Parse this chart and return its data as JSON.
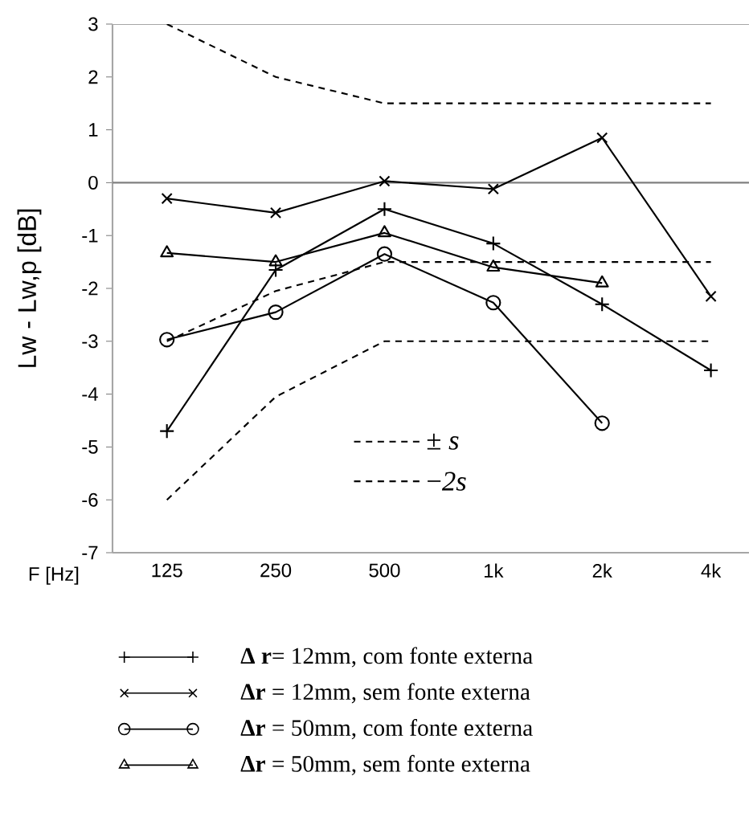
{
  "chart_data": {
    "type": "line",
    "ylabel": "Lw - Lw,p [dB]",
    "xlabel": "F [Hz]",
    "categories": [
      "125",
      "250",
      "500",
      "1k",
      "2k",
      "4k"
    ],
    "ylim": [
      -7,
      3
    ],
    "yticks": [
      -7,
      -6,
      -5,
      -4,
      -3,
      -2,
      -1,
      0,
      1,
      2,
      3
    ],
    "legend": "bottom",
    "ref_lines": [
      {
        "axis": "y",
        "value": 0,
        "color": "#808080"
      }
    ],
    "series": [
      {
        "name": "**Δ r**= 12mm, com fonte externa",
        "color": "#000000",
        "marker": "plus",
        "values": [
          -4.7,
          -1.65,
          -0.5,
          -1.15,
          -2.3,
          -3.55
        ]
      },
      {
        "name": "**Δr** = 12mm, sem fonte externa",
        "color": "#000000",
        "marker": "cross",
        "values": [
          -0.3,
          -0.57,
          0.03,
          -0.12,
          0.85,
          -2.15
        ]
      },
      {
        "name": "**Δr** = 50mm, com fonte externa",
        "color": "#000000",
        "marker": "circle",
        "values": [
          -2.97,
          -2.45,
          -1.35,
          -2.27,
          -4.55,
          null
        ]
      },
      {
        "name": "**Δr** = 50mm, sem fonte externa",
        "color": "#000000",
        "marker": "triangle",
        "values": [
          -1.33,
          -1.5,
          -0.95,
          -1.6,
          -1.9,
          null
        ]
      },
      {
        "name": "± *s*",
        "color": "#000000",
        "marker": "none",
        "line_style": "dashed",
        "values": [
          3,
          2,
          1.5,
          1.5,
          1.5,
          1.5
        ]
      },
      {
        "color": "#000000",
        "marker": "none",
        "line_style": "dashed",
        "values": [
          -3,
          -2.05,
          -1.5,
          -1.5,
          -1.5,
          -1.5
        ]
      },
      {
        "name": "−*2s*",
        "color": "#000000",
        "marker": "none",
        "line_style": "dashed",
        "values": [
          -6,
          -4.05,
          -3,
          -3,
          -3,
          -3
        ]
      }
    ]
  }
}
